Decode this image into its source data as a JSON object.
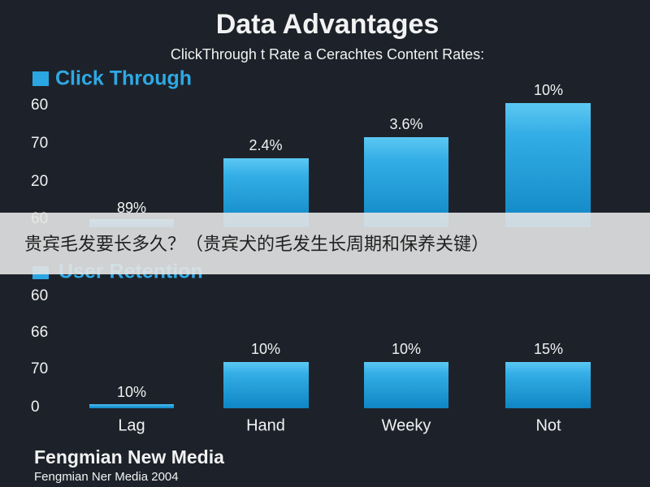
{
  "header": {
    "title": "Data Advantages",
    "subtitle": "ClickThrough t Rate a Cerachtes Content Rates:"
  },
  "panels": [
    {
      "legend": "Click Through",
      "axis_labels": [
        "60",
        "70",
        "20",
        "60"
      ],
      "bar_labels": [
        "89%",
        "2.4%",
        "3.6%",
        "10%"
      ]
    },
    {
      "legend": "User Retention",
      "axis_labels": [
        "60",
        "66",
        "70",
        "0"
      ],
      "bar_labels": [
        "10%",
        "10%",
        "10%",
        "15%"
      ]
    }
  ],
  "categories": [
    "Lag",
    "Hand",
    "Weeky",
    "Not"
  ],
  "banner": "贵宾毛发要长多久？（贵宾犬的毛发生长周期和保养关键）",
  "footer": {
    "brand": "Fengmian New Media",
    "note": "Fengmian Ner Media 2004"
  }
}
